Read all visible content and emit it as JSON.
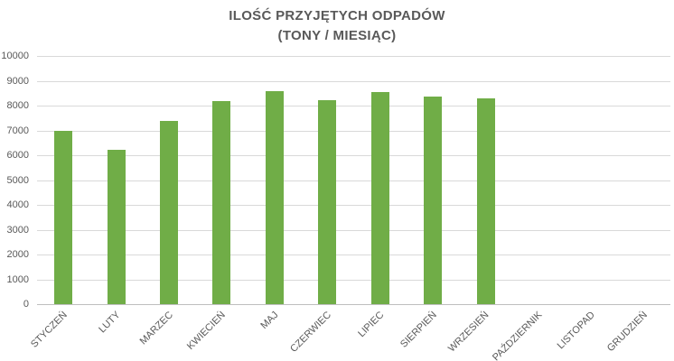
{
  "title": {
    "line1": "ILOŚĆ PRZYJĘTYCH ODPADÓW",
    "line2": "(TONY / MIESIĄC)"
  },
  "colors": {
    "bar": "#70AD47",
    "gridline": "#D9D9D9",
    "axis_line": "#BFBFBF",
    "text": "#595959",
    "background": "#FFFFFF"
  },
  "chart_data": {
    "type": "bar",
    "title": "ILOŚĆ PRZYJĘTYCH ODPADÓW (TONY / MIESIĄC)",
    "categories": [
      "STYCZEŃ",
      "LUTY",
      "MARZEC",
      "KWIECIEŃ",
      "MAJ",
      "CZERWIEC",
      "LIPIEC",
      "SIERPIEŃ",
      "WRZESIEŃ",
      "PAŹDZIERNIK",
      "LISTOPAD",
      "GRUDZIEŃ"
    ],
    "values": [
      7000,
      6230,
      7370,
      8200,
      8600,
      8230,
      8530,
      8350,
      8280,
      0,
      0,
      0
    ],
    "xlabel": "",
    "ylabel": "",
    "ylim": [
      0,
      10000
    ],
    "ytick_interval": 1000,
    "yticks": [
      0,
      1000,
      2000,
      3000,
      4000,
      5000,
      6000,
      7000,
      8000,
      9000,
      10000
    ],
    "grid": true,
    "legend": false,
    "bar_color": "#70AD47"
  }
}
